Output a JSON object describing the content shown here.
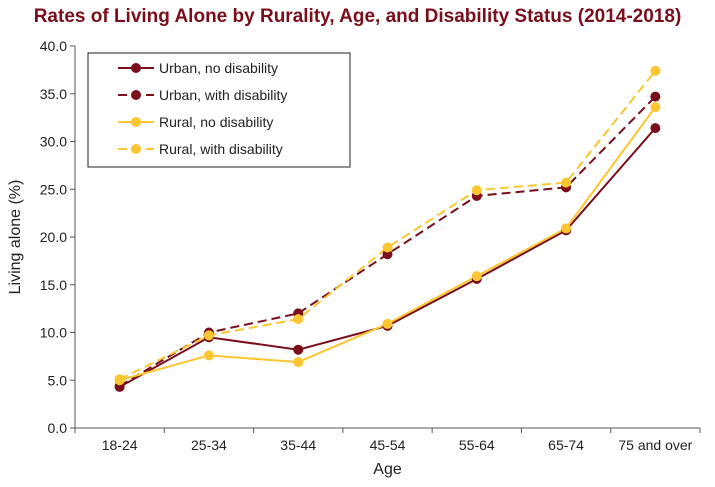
{
  "chart_data": {
    "type": "line",
    "title": "Rates of Living Alone by Rurality, Age, and Disability Status (2014-2018)",
    "xlabel": "Age",
    "ylabel": "Living alone (%)",
    "ylim": [
      0,
      40
    ],
    "yticks": [
      "0.0",
      "5.0",
      "10.0",
      "15.0",
      "20.0",
      "25.0",
      "30.0",
      "35.0",
      "40.0"
    ],
    "categories": [
      "18-24",
      "25-34",
      "35-44",
      "45-54",
      "55-64",
      "65-74",
      "75 and over"
    ],
    "legend_position": "top-left",
    "grid": false,
    "series": [
      {
        "name": "Urban, no disability",
        "color": "#7a0e1b",
        "dashed": false,
        "values": [
          4.3,
          9.5,
          8.2,
          10.7,
          15.6,
          20.7,
          31.4
        ]
      },
      {
        "name": "Urban, with disability",
        "color": "#7a0e1b",
        "dashed": true,
        "values": [
          4.4,
          10.0,
          12.0,
          18.2,
          24.3,
          25.2,
          34.7
        ]
      },
      {
        "name": "Rural, no disability",
        "color": "#fbc631",
        "dashed": false,
        "values": [
          5.0,
          7.6,
          6.9,
          10.9,
          15.9,
          20.9,
          33.6
        ]
      },
      {
        "name": "Rural, with disability",
        "color": "#fbc631",
        "dashed": true,
        "values": [
          5.1,
          9.7,
          11.4,
          18.9,
          24.9,
          25.7,
          37.4
        ]
      }
    ]
  }
}
